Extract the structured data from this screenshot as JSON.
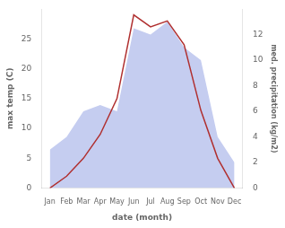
{
  "chart_data": {
    "type": "line",
    "xlabel": "date (month)",
    "ylabel": "max temp (C)",
    "y2label": "med. precipitation (kg/m2)",
    "categories": [
      "Jan",
      "Feb",
      "Mar",
      "Apr",
      "May",
      "Jun",
      "Jul",
      "Aug",
      "Sep",
      "Oct",
      "Nov",
      "Dec"
    ],
    "series": [
      {
        "type": "area",
        "axis": "y2",
        "color": "#c5cdf0",
        "values": [
          3,
          4,
          6,
          6.5,
          6,
          12.5,
          12,
          13,
          11,
          10,
          4,
          2
        ]
      },
      {
        "type": "line",
        "axis": "y",
        "color": "#b03030",
        "values": [
          0,
          2,
          5,
          9,
          15,
          29,
          27,
          28,
          24,
          13,
          5,
          0
        ]
      }
    ],
    "ylim": [
      0,
      30
    ],
    "yticks": [
      0,
      5,
      10,
      15,
      20,
      25
    ],
    "y2lim": [
      0,
      14
    ],
    "y2ticks": [
      0,
      2,
      4,
      6,
      8,
      10,
      12
    ],
    "grid": false,
    "legend": "none"
  }
}
